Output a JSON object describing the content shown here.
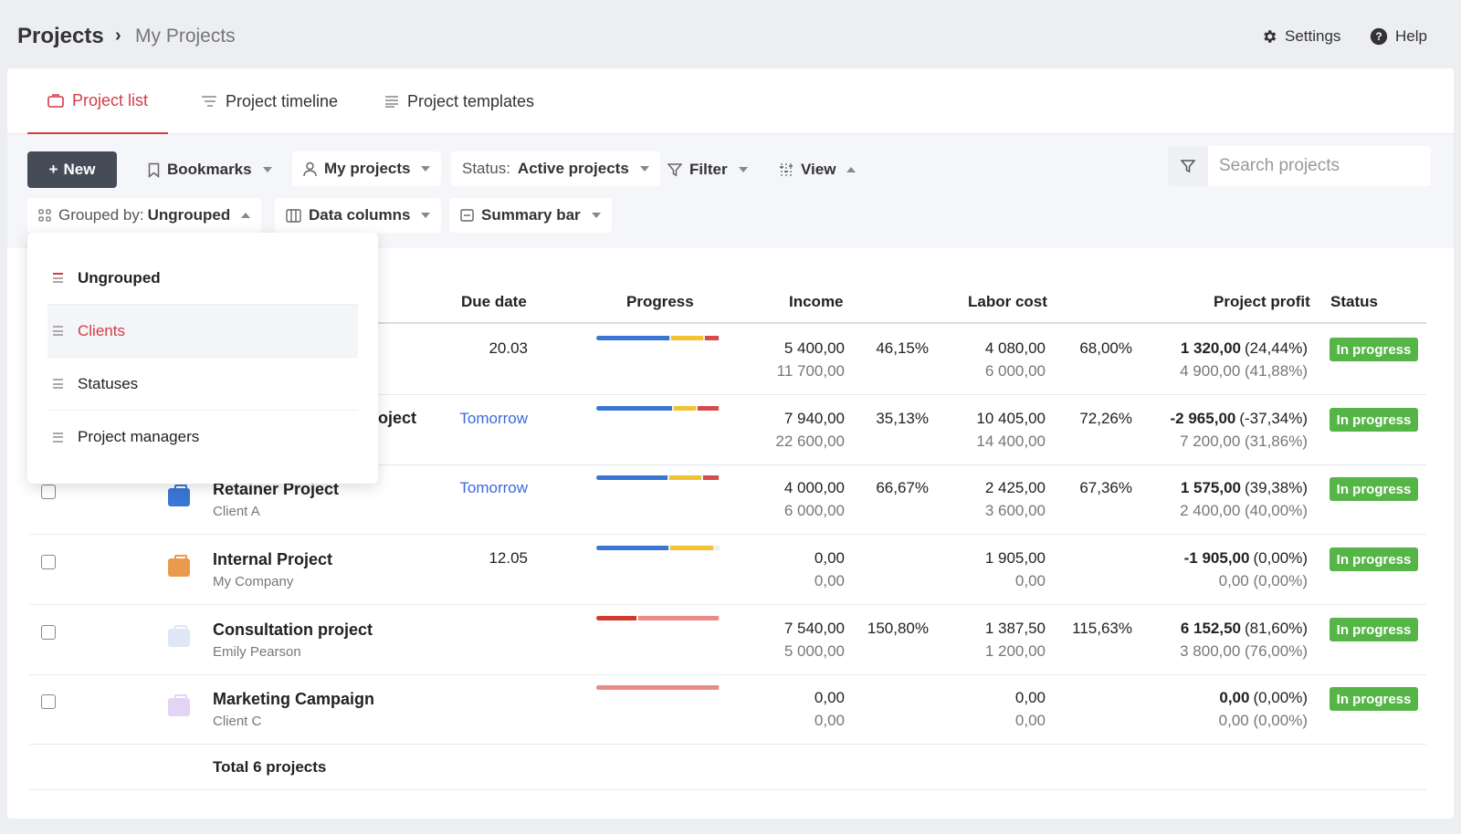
{
  "breadcrumb": {
    "root": "Projects",
    "separator": "›",
    "current": "My Projects"
  },
  "top_links": {
    "settings": "Settings",
    "help": "Help"
  },
  "tabs": [
    {
      "label": "Project list",
      "icon": "briefcase-icon",
      "active": true
    },
    {
      "label": "Project timeline",
      "icon": "timeline-icon",
      "active": false
    },
    {
      "label": "Project templates",
      "icon": "list-icon",
      "active": false
    }
  ],
  "toolbar": {
    "new_label": "New",
    "new_prefix": "+",
    "bookmarks": "Bookmarks",
    "my_projects": "My projects",
    "status_prefix": "Status:",
    "status_value": "Active projects",
    "filter": "Filter",
    "view": "View",
    "grouped_prefix": "Grouped by:",
    "grouped_value": "Ungrouped",
    "data_columns": "Data columns",
    "summary_bar": "Summary bar",
    "search_placeholder": "Search projects"
  },
  "table": {
    "headers": {
      "due_date": "Due date",
      "progress": "Progress",
      "income": "Income",
      "labor_cost": "Labor cost",
      "project_profit": "Project profit",
      "status": "Status"
    },
    "rows": [
      {
        "name": "",
        "client": "",
        "due": "20.03",
        "due_link": false,
        "income": "5 400,00",
        "income_sub": "11 700,00",
        "income_pct": "46,15%",
        "labor": "4 080,00",
        "labor_sub": "6 000,00",
        "labor_pct": "68,00%",
        "profit": "1 320,00",
        "profit_pct": "(24,44%)",
        "profit_sub": "4 900,00 (41,88%)",
        "status": "In progress",
        "progress": [
          0.6,
          0.27,
          0.11
        ],
        "colors": [
          "#3a76d4",
          "#f1c232",
          "#d64b4b"
        ]
      },
      {
        "name": "oject",
        "client": "",
        "due": "Tomorrow",
        "due_link": true,
        "income": "7 940,00",
        "income_sub": "22 600,00",
        "income_pct": "35,13%",
        "labor": "10 405,00",
        "labor_sub": "14 400,00",
        "labor_pct": "72,26%",
        "profit": "-2 965,00",
        "profit_pct": "(-37,34%)",
        "profit_sub": "7 200,00 (31,86%)",
        "status": "In progress",
        "progress": [
          0.62,
          0.18,
          0.17
        ],
        "colors": [
          "#3a76d4",
          "#f1c232",
          "#d64b4b"
        ]
      },
      {
        "name": "Retainer Project",
        "client": "Client A",
        "due": "Tomorrow",
        "due_link": true,
        "income": "4 000,00",
        "income_sub": "6 000,00",
        "income_pct": "66,67%",
        "labor": "2 425,00",
        "labor_sub": "3 600,00",
        "labor_pct": "67,36%",
        "profit": "1 575,00",
        "profit_pct": "(39,38%)",
        "profit_sub": "2 400,00 (40,00%)",
        "status": "In progress",
        "icon_color": "#3a76d4",
        "progress": [
          0.58,
          0.26,
          0.13
        ],
        "colors": [
          "#3a76d4",
          "#f1c232",
          "#d64b4b"
        ]
      },
      {
        "name": "Internal Project",
        "client": "My Company",
        "due": "12.05",
        "due_link": false,
        "income": "0,00",
        "income_sub": "0,00",
        "income_pct": "",
        "labor": "1 905,00",
        "labor_sub": "0,00",
        "labor_pct": "",
        "profit": "-1 905,00",
        "profit_pct": "(0,00%)",
        "profit_sub": "0,00 (0,00%)",
        "status": "In progress",
        "icon_color": "#ea9a4d",
        "progress": [
          0.58,
          0.35,
          0.0
        ],
        "colors": [
          "#3a76d4",
          "#f1c232",
          "#d64b4b"
        ]
      },
      {
        "name": "Consultation project",
        "client": "Emily Pearson",
        "due": "",
        "due_link": false,
        "income": "7 540,00",
        "income_sub": "5 000,00",
        "income_pct": "150,80%",
        "labor": "1 387,50",
        "labor_sub": "1 200,00",
        "labor_pct": "115,63%",
        "profit": "6 152,50",
        "profit_pct": "(81,60%)",
        "profit_sub": "3 800,00 (76,00%)",
        "status": "In progress",
        "icon_color": "#dfe6f5",
        "progress": [
          0.33,
          0.67,
          0.0
        ],
        "colors": [
          "#d13a2e",
          "#ec8b85",
          "#ec8b85"
        ]
      },
      {
        "name": "Marketing Campaign",
        "client": "Client C",
        "due": "",
        "due_link": false,
        "income": "0,00",
        "income_sub": "0,00",
        "income_pct": "",
        "labor": "0,00",
        "labor_sub": "0,00",
        "labor_pct": "",
        "profit": "0,00",
        "profit_pct": "(0,00%)",
        "profit_sub": "0,00 (0,00%)",
        "status": "In progress",
        "icon_color": "#e3d4f6",
        "progress": [
          1.0,
          0.0,
          0.0
        ],
        "colors": [
          "#ec8b85",
          "#ec8b85",
          "#ec8b85"
        ]
      }
    ],
    "total": "Total 6 projects"
  },
  "dropdown": {
    "items": [
      {
        "label": "Ungrouped",
        "selected": true,
        "highlighted": false
      },
      {
        "label": "Clients",
        "selected": false,
        "highlighted": true
      },
      {
        "label": "Statuses",
        "selected": false,
        "highlighted": false
      },
      {
        "label": "Project managers",
        "selected": false,
        "highlighted": false
      }
    ]
  },
  "colors": {
    "accent": "#d63b45",
    "status_green": "#55b546",
    "primary_button": "#454c57",
    "link": "#3d6ad6"
  }
}
